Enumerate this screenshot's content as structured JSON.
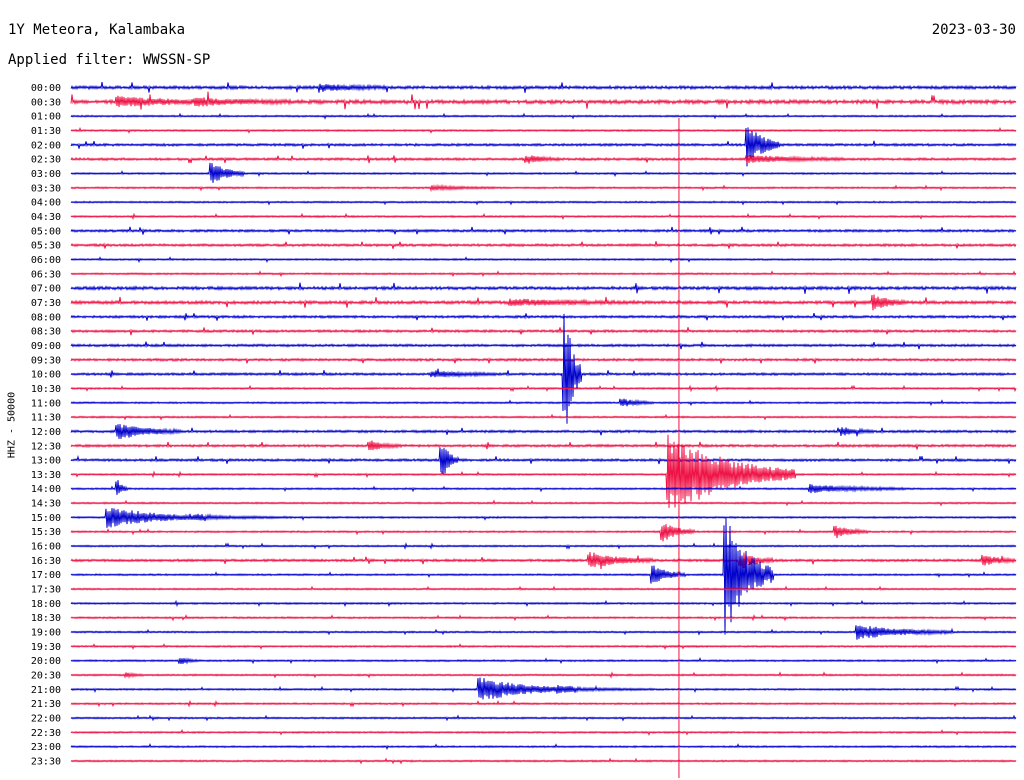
{
  "header": {
    "station": "1Y Meteora, Kalambaka",
    "date": "2023-03-30",
    "filter": "Applied filter: WWSSN-SP"
  },
  "chart_data": {
    "type": "line",
    "title": "1Y Meteora, Kalambaka",
    "date": "2023-03-30",
    "subtitle": "Applied filter: WWSSN-SP",
    "ylabel": "HHZ - 50000",
    "row_labels": [
      "00:00",
      "00:30",
      "01:00",
      "01:30",
      "02:00",
      "02:30",
      "03:00",
      "03:30",
      "04:00",
      "04:30",
      "05:00",
      "05:30",
      "06:00",
      "06:30",
      "07:00",
      "07:30",
      "08:00",
      "08:30",
      "09:00",
      "09:30",
      "10:00",
      "10:30",
      "11:00",
      "11:30",
      "12:00",
      "12:30",
      "13:00",
      "13:30",
      "14:00",
      "14:30",
      "15:00",
      "15:30",
      "16:00",
      "16:30",
      "17:00",
      "17:30",
      "18:00",
      "18:30",
      "19:00",
      "19:30",
      "20:00",
      "20:30",
      "21:00",
      "21:30",
      "22:00",
      "22:30",
      "23:00",
      "23:30"
    ],
    "row_minutes": 30,
    "colors": [
      "#0000cc",
      "#ee1144"
    ],
    "noise": [
      3,
      4,
      1,
      1,
      2,
      2,
      1,
      1,
      1,
      1,
      2,
      2,
      1,
      1,
      3,
      3,
      2,
      2,
      2,
      2,
      2,
      1,
      1,
      1,
      2,
      2,
      2,
      1,
      1,
      1,
      1,
      1,
      1,
      2,
      1,
      1,
      1,
      1,
      1,
      1,
      1,
      1,
      1,
      1,
      1,
      1,
      1,
      1
    ],
    "events": [
      {
        "row": 0,
        "minute": 8,
        "amplitude": 3,
        "duration": 2
      },
      {
        "row": 1,
        "minute": 1.5,
        "amplitude": 5,
        "duration": 3
      },
      {
        "row": 1,
        "minute": 4,
        "amplitude": 3,
        "duration": 3
      },
      {
        "row": 4,
        "minute": 21.5,
        "amplitude": 22,
        "duration": 1
      },
      {
        "row": 5,
        "minute": 21.5,
        "amplitude": 4,
        "duration": 3
      },
      {
        "row": 5,
        "minute": 14.5,
        "amplitude": 4,
        "duration": 1
      },
      {
        "row": 6,
        "minute": 4.5,
        "amplitude": 12,
        "duration": 1
      },
      {
        "row": 7,
        "minute": 11.5,
        "amplitude": 2,
        "duration": 2
      },
      {
        "row": 15,
        "minute": 25.5,
        "amplitude": 8,
        "duration": 1
      },
      {
        "row": 15,
        "minute": 14,
        "amplitude": 3,
        "duration": 4
      },
      {
        "row": 20,
        "minute": 15.7,
        "amplitude": 68,
        "duration": 0.5
      },
      {
        "row": 20,
        "minute": 11.5,
        "amplitude": 3,
        "duration": 2
      },
      {
        "row": 22,
        "minute": 17.5,
        "amplitude": 4,
        "duration": 1
      },
      {
        "row": 24,
        "minute": 1.5,
        "amplitude": 8,
        "duration": 2
      },
      {
        "row": 24,
        "minute": 24.5,
        "amplitude": 4,
        "duration": 1
      },
      {
        "row": 25,
        "minute": 9.5,
        "amplitude": 5,
        "duration": 1
      },
      {
        "row": 26,
        "minute": 11.8,
        "amplitude": 18,
        "duration": 0.5
      },
      {
        "row": 27,
        "minute": 19,
        "amplitude": 42,
        "duration": 4
      },
      {
        "row": 28,
        "minute": 1.5,
        "amplitude": 8,
        "duration": 0.3
      },
      {
        "row": 28,
        "minute": 23.5,
        "amplitude": 4,
        "duration": 3
      },
      {
        "row": 30,
        "minute": 1.2,
        "amplitude": 11,
        "duration": 3
      },
      {
        "row": 30,
        "minute": 4,
        "amplitude": 2,
        "duration": 3
      },
      {
        "row": 31,
        "minute": 18.8,
        "amplitude": 10,
        "duration": 1
      },
      {
        "row": 31,
        "minute": 24.3,
        "amplitude": 6,
        "duration": 1
      },
      {
        "row": 33,
        "minute": 16.5,
        "amplitude": 8,
        "duration": 2
      },
      {
        "row": 33,
        "minute": 21.3,
        "amplitude": 8,
        "duration": 1
      },
      {
        "row": 33,
        "minute": 29,
        "amplitude": 5,
        "duration": 1
      },
      {
        "row": 34,
        "minute": 18.5,
        "amplitude": 9,
        "duration": 1
      },
      {
        "row": 34,
        "minute": 20.8,
        "amplitude": 60,
        "duration": 1.5
      },
      {
        "row": 38,
        "minute": 25,
        "amplitude": 7,
        "duration": 3
      },
      {
        "row": 40,
        "minute": 3.5,
        "amplitude": 3,
        "duration": 0.5
      },
      {
        "row": 41,
        "minute": 1.8,
        "amplitude": 2,
        "duration": 0.5
      },
      {
        "row": 42,
        "minute": 13,
        "amplitude": 12,
        "duration": 3
      },
      {
        "row": 42,
        "minute": 15.5,
        "amplitude": 2,
        "duration": 3
      }
    ],
    "marker_line": {
      "minute": 19.3,
      "color": "#ee1144"
    }
  }
}
